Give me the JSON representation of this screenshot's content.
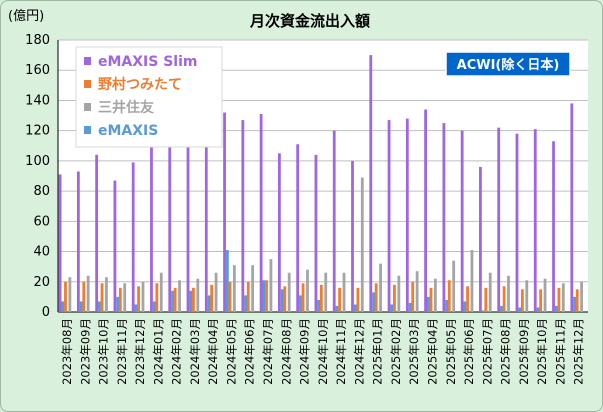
{
  "chart_data": {
    "type": "bar",
    "title": "月次資金流出入額",
    "ylabel": "(億円)",
    "ylim": [
      0,
      180
    ],
    "yticks": [
      0,
      20,
      40,
      60,
      80,
      100,
      120,
      140,
      160,
      180
    ],
    "badge": "ACWI(除く日本)",
    "legend_position": "top-left",
    "grid": true,
    "categories": [
      "2023年08月",
      "2023年09月",
      "2023年10月",
      "2023年11月",
      "2023年12月",
      "2024年01月",
      "2024年02月",
      "2024年03月",
      "2024年04月",
      "2024年05月",
      "2024年06月",
      "2024年07月",
      "2024年08月",
      "2024年09月",
      "2024年10月",
      "2024年11月",
      "2024年12月",
      "2025年01月",
      "2025年02月",
      "2025年03月",
      "2025年04月",
      "2025年05月",
      "2025年06月",
      "2025年07月",
      "2025年08月",
      "2025年09月",
      "2025年10月",
      "2025年11月",
      "2025年12月"
    ],
    "series": [
      {
        "name": "eMAXIS Slim",
        "color": "#a066e0",
        "values": [
          91,
          93,
          104,
          87,
          99,
          114,
          121,
          117,
          119,
          132,
          127,
          131,
          105,
          111,
          104,
          120,
          100,
          170,
          127,
          128,
          134,
          125,
          120,
          96,
          122,
          118,
          121,
          113,
          138
        ]
      },
      {
        "name": "野村つみたて",
        "color": "#ed7d31",
        "values": [
          20,
          20,
          19,
          16,
          17,
          19,
          16,
          16,
          18,
          20,
          20,
          21,
          17,
          19,
          18,
          16,
          16,
          19,
          18,
          20,
          16,
          21,
          17,
          16,
          17,
          15,
          15,
          16,
          15
        ]
      },
      {
        "name": "三井住友",
        "color": "#a5a5a5",
        "values": [
          23,
          24,
          23,
          19,
          20,
          26,
          21,
          22,
          26,
          31,
          31,
          35,
          26,
          28,
          26,
          26,
          89,
          32,
          24,
          27,
          22,
          34,
          41,
          26,
          24,
          21,
          22,
          19,
          20
        ]
      },
      {
        "name": "eMAXIS",
        "color": "#5b9bd5",
        "values": [
          7,
          7,
          7,
          10,
          5,
          7,
          14,
          14,
          11,
          41,
          11,
          21,
          15,
          11,
          8,
          4,
          5,
          13,
          5,
          6,
          10,
          8,
          7,
          1,
          4,
          3,
          3,
          4,
          10
        ]
      }
    ]
  }
}
